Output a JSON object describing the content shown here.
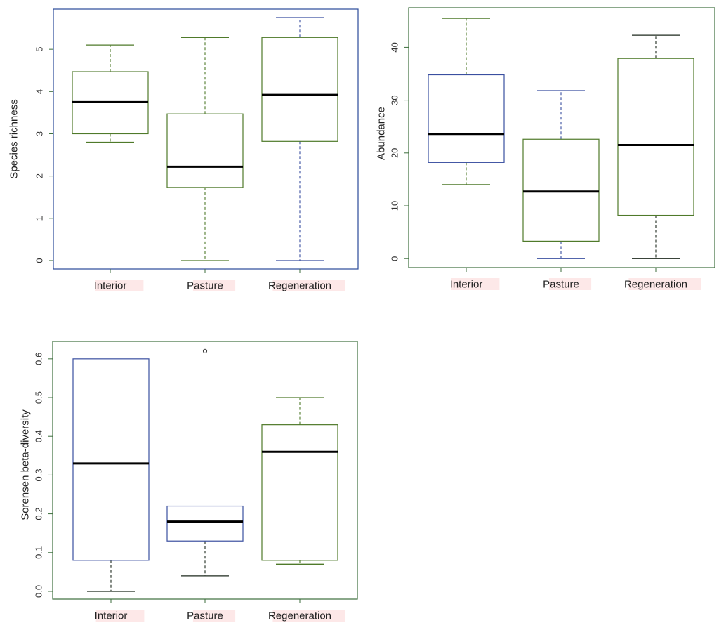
{
  "colors": {
    "background": "#ffffff",
    "frame_blue": "#2a4a9a",
    "frame_green": "#3c6e3c",
    "box_green": "#4f7a2a",
    "box_blue": "#3a4fa0",
    "box_black": "#1e2a1e",
    "median": "#000000",
    "label_highlight": "#fde8e8"
  },
  "chart_data": [
    {
      "type": "box",
      "title": "",
      "xlabel": "",
      "ylabel": "Species richness",
      "ylim": [
        -0.2,
        5.95
      ],
      "yticks": [
        0,
        1,
        2,
        3,
        4,
        5
      ],
      "ytick_labels": [
        "0",
        "1",
        "2",
        "3",
        "4",
        "5"
      ],
      "grid": false,
      "categories": [
        "Interior",
        "Pasture",
        "Regeneration"
      ],
      "boxes": [
        {
          "whisker_low": 2.8,
          "q1": 3.0,
          "median": 3.75,
          "q3": 4.47,
          "whisker_high": 5.1,
          "outliers": []
        },
        {
          "whisker_low": 0.0,
          "q1": 1.73,
          "median": 2.22,
          "q3": 3.47,
          "whisker_high": 5.28,
          "outliers": []
        },
        {
          "whisker_low": 0.0,
          "q1": 2.82,
          "median": 3.92,
          "q3": 5.28,
          "whisker_high": 5.75,
          "outliers": []
        }
      ]
    },
    {
      "type": "box",
      "title": "",
      "xlabel": "",
      "ylabel": "Abundance",
      "ylim": [
        -1.7,
        47.5
      ],
      "yticks": [
        0,
        10,
        20,
        30,
        40
      ],
      "ytick_labels": [
        "0",
        "10",
        "20",
        "30",
        "40"
      ],
      "grid": false,
      "categories": [
        "Interior",
        "Pasture",
        "Regeneration"
      ],
      "boxes": [
        {
          "whisker_low": 14.0,
          "q1": 18.2,
          "median": 23.6,
          "q3": 34.8,
          "whisker_high": 45.5,
          "outliers": []
        },
        {
          "whisker_low": 0.0,
          "q1": 3.3,
          "median": 12.7,
          "q3": 22.6,
          "whisker_high": 31.8,
          "outliers": []
        },
        {
          "whisker_low": 0.0,
          "q1": 8.2,
          "median": 21.5,
          "q3": 37.9,
          "whisker_high": 42.3,
          "outliers": []
        }
      ]
    },
    {
      "type": "box",
      "title": "",
      "xlabel": "",
      "ylabel": "Sorensen beta-diversity",
      "ylim": [
        -0.02,
        0.645
      ],
      "yticks": [
        0.0,
        0.1,
        0.2,
        0.3,
        0.4,
        0.5,
        0.6
      ],
      "ytick_labels": [
        "0.0",
        "0.1",
        "0.2",
        "0.3",
        "0.4",
        "0.5",
        "0.6"
      ],
      "grid": false,
      "categories": [
        "Interior",
        "Pasture",
        "Regeneration"
      ],
      "boxes": [
        {
          "whisker_low": 0.0,
          "q1": 0.08,
          "median": 0.33,
          "q3": 0.6,
          "whisker_high": 0.6,
          "outliers": []
        },
        {
          "whisker_low": 0.04,
          "q1": 0.13,
          "median": 0.18,
          "q3": 0.22,
          "whisker_high": 0.22,
          "outliers": [
            0.62
          ]
        },
        {
          "whisker_low": 0.07,
          "q1": 0.08,
          "median": 0.36,
          "q3": 0.43,
          "whisker_high": 0.5,
          "outliers": []
        }
      ]
    }
  ]
}
